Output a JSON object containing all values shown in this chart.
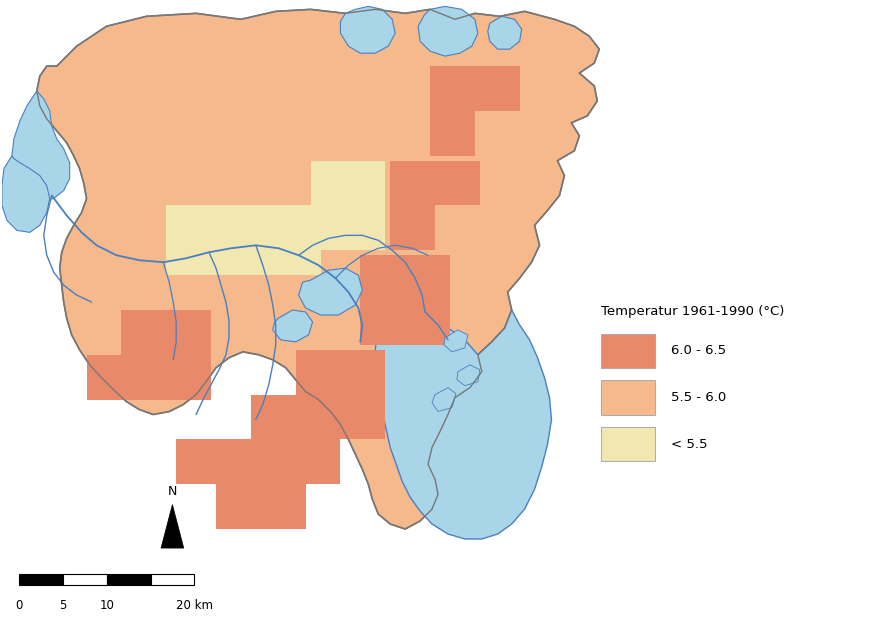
{
  "background_color": "#ffffff",
  "water_color": "#a8d5e8",
  "water_border_color": "#4a7fc1",
  "land_border_color": "#777777",
  "color_hot": "#e8896a",
  "color_warm": "#f5b98c",
  "color_cool": "#f0e8b0",
  "legend_title": "Temperatur 1961-1990 (°C)",
  "legend_items": [
    {
      "label": "6.0 - 6.5",
      "color": "#e8896a"
    },
    {
      "label": "5.5 - 6.0",
      "color": "#f5b98c"
    },
    {
      "label": "< 5.5",
      "color": "#f0e8b0"
    }
  ]
}
